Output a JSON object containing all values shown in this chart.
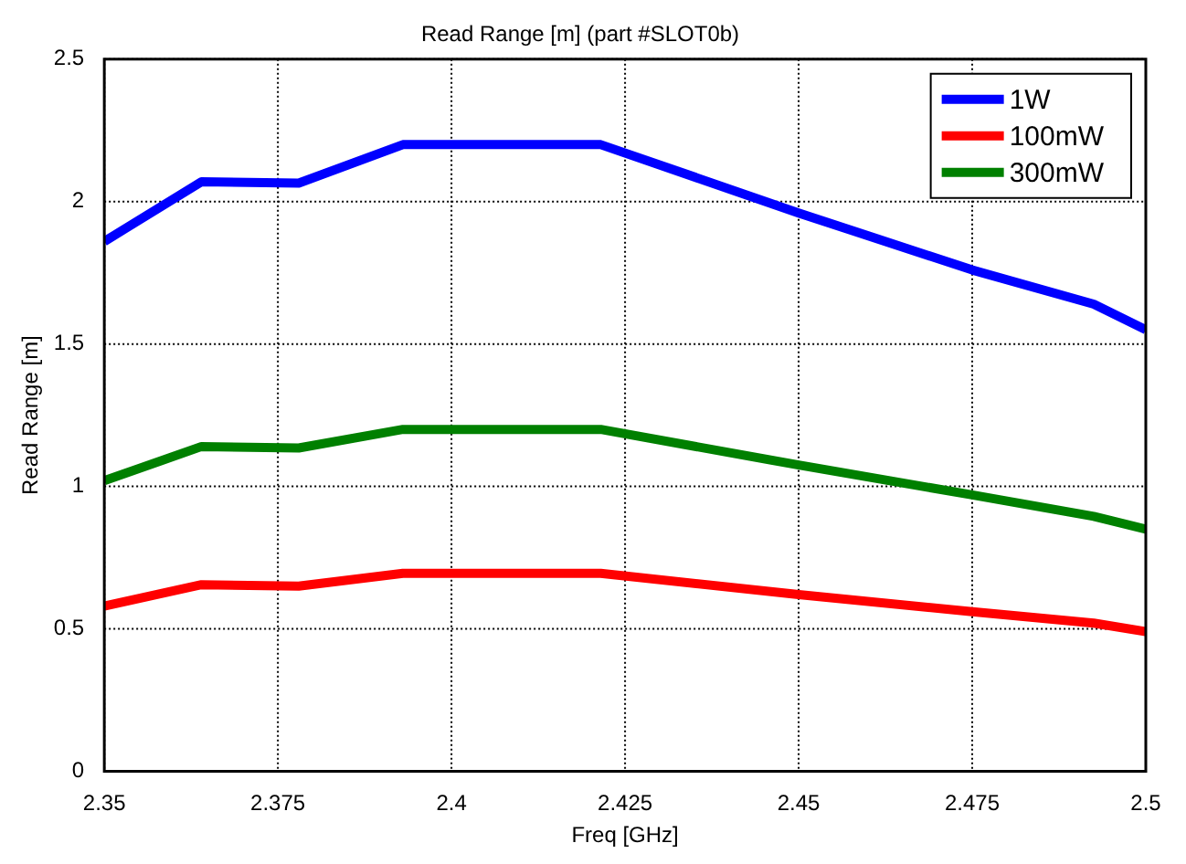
{
  "chart_data": {
    "type": "line",
    "title": "Read Range [m] (part #SLOT0b)",
    "xlabel": "Freq [GHz]",
    "ylabel": "Read Range [m]",
    "x": [
      2.35,
      2.364,
      2.378,
      2.393,
      2.4215,
      2.45,
      2.475,
      2.4925,
      2.5
    ],
    "series": [
      {
        "name": "1W",
        "color": "#0000ff",
        "values": [
          1.86,
          2.07,
          2.065,
          2.2,
          2.2,
          1.96,
          1.76,
          1.64,
          1.55
        ]
      },
      {
        "name": "100mW",
        "color": "#ff0000",
        "values": [
          0.58,
          0.655,
          0.65,
          0.695,
          0.695,
          0.62,
          0.56,
          0.52,
          0.49
        ]
      },
      {
        "name": "300mW",
        "color": "#008000",
        "values": [
          1.02,
          1.14,
          1.135,
          1.2,
          1.2,
          1.075,
          0.97,
          0.895,
          0.85
        ]
      }
    ],
    "xlim": [
      2.35,
      2.5
    ],
    "xticks": [
      2.35,
      2.375,
      2.4,
      2.425,
      2.45,
      2.475,
      2.5
    ],
    "ylim": [
      0,
      2.5
    ],
    "yticks": [
      0,
      0.5,
      1,
      1.5,
      2,
      2.5
    ],
    "grid": true,
    "legend": "top right",
    "marker": "none",
    "line_style": "solid"
  }
}
